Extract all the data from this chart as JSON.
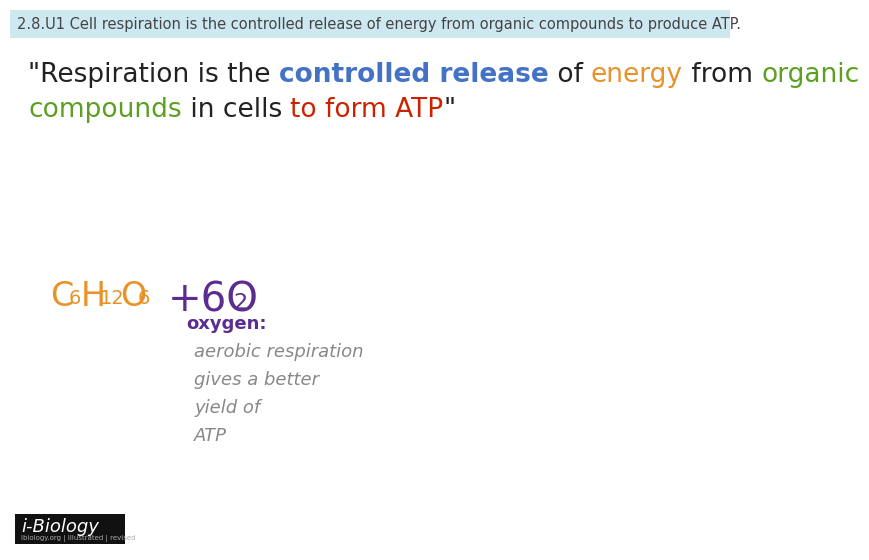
{
  "bg_color": "#ffffff",
  "header_bg": "#cde8f0",
  "header_text": "2.8.U1 Cell respiration is the controlled release of energy from organic compounds to produce ATP.",
  "header_text_color": "#444444",
  "header_fontsize": 10.5,
  "quote_fontsize": 19,
  "formula_C6H12O6_color": "#e8922a",
  "formula_O2_color": "#5b2d8e",
  "note_color": "#5b2d8e",
  "note_italic_color": "#888888",
  "black_color": "#222222",
  "blue_color": "#4472c4",
  "orange_color": "#e8922a",
  "green_color": "#5ba020",
  "red_color": "#cc2200",
  "ibiology_bg": "#111111",
  "ibiology_text": "i-Biology",
  "ibiology_subtext": "ibiology.org | illustrated | revised"
}
